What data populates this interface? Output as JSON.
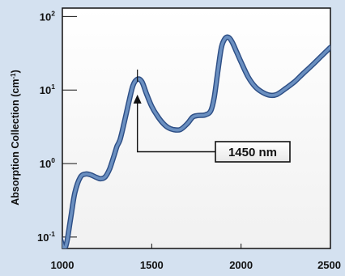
{
  "chart_data": {
    "type": "line",
    "title": "",
    "xlabel": "",
    "ylabel": "Absorption Collection (cm",
    "ylabel_superscript": "-1",
    "ylabel_close": ")",
    "xlim": [
      1000,
      2500
    ],
    "ylim": [
      0.07,
      130
    ],
    "y_scale": "log",
    "x_ticks": [
      {
        "value": 1000,
        "label": "1000"
      },
      {
        "value": 1500,
        "label": "1500"
      },
      {
        "value": 2000,
        "label": "2000"
      },
      {
        "value": 2500,
        "label": "2500"
      }
    ],
    "y_ticks": [
      {
        "value": 0.1,
        "base": "10",
        "exp": "-1"
      },
      {
        "value": 1,
        "base": "10",
        "exp": "0"
      },
      {
        "value": 10,
        "base": "10",
        "exp": "1"
      },
      {
        "value": 100,
        "base": "10",
        "exp": "2"
      }
    ],
    "grid": false,
    "series": [
      {
        "color": "#6a8fc0",
        "x": [
          960,
          975,
          995,
          1010,
          1025,
          1045,
          1070,
          1100,
          1130,
          1160,
          1190,
          1215,
          1240,
          1265,
          1290,
          1305,
          1315,
          1325,
          1345,
          1370,
          1395,
          1420,
          1445,
          1470,
          1500,
          1530,
          1560,
          1590,
          1620,
          1660,
          1700,
          1730,
          1760,
          1800,
          1830,
          1850,
          1870,
          1890,
          1910,
          1930,
          1950,
          1975,
          2000,
          2040,
          2080,
          2120,
          2160,
          2200,
          2250,
          2300,
          2350,
          2400,
          2450,
          2500
        ],
        "y": [
          0.2,
          0.13,
          0.085,
          0.07,
          0.085,
          0.17,
          0.4,
          0.65,
          0.72,
          0.7,
          0.65,
          0.62,
          0.66,
          0.85,
          1.3,
          1.7,
          1.9,
          2.2,
          3.5,
          6.5,
          11.5,
          14.0,
          13.0,
          9.0,
          6.0,
          4.5,
          3.6,
          3.1,
          2.9,
          2.9,
          3.5,
          4.3,
          4.5,
          4.6,
          5.2,
          8.0,
          18.0,
          38.0,
          50.0,
          52.0,
          45.0,
          33.0,
          24.0,
          15.0,
          11.0,
          9.3,
          8.5,
          8.7,
          10.5,
          13.0,
          17.0,
          22.0,
          29.0,
          38.0
        ]
      }
    ],
    "annotation": {
      "text": "1450 nm",
      "x": 1420,
      "y": 14.0
    }
  }
}
